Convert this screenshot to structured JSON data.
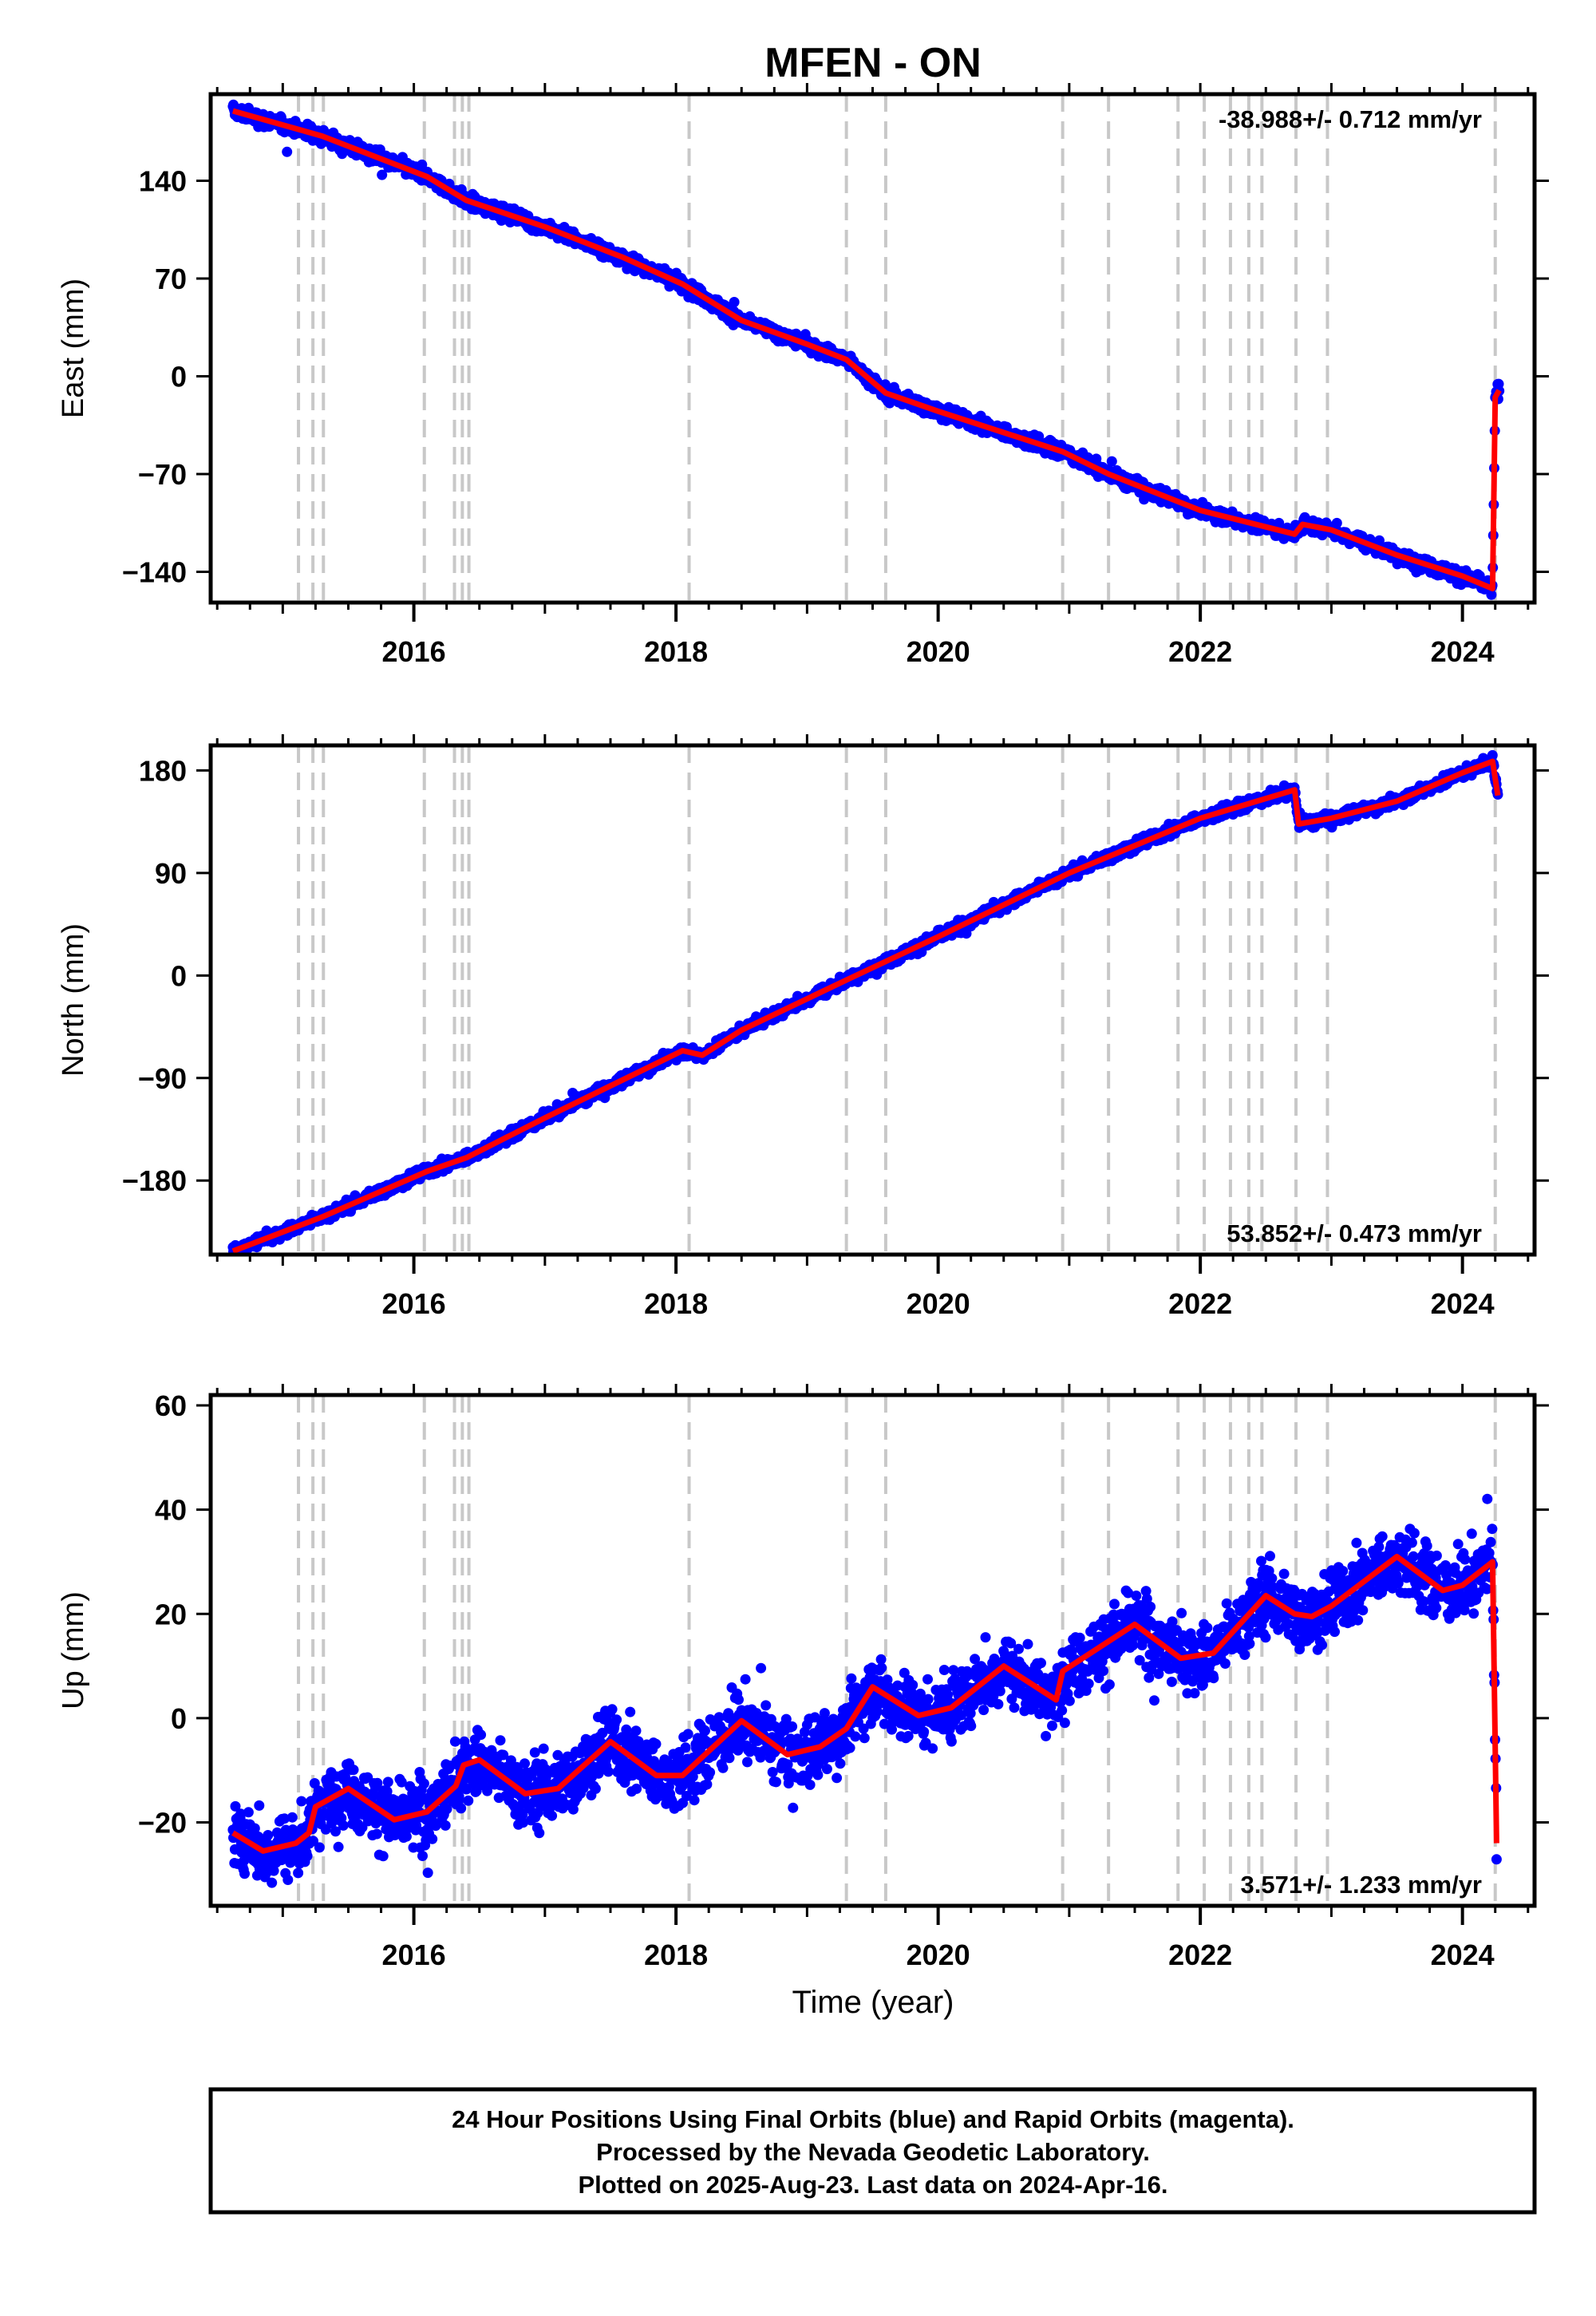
{
  "chart_data": {
    "title": "MFEN - ON",
    "type": "scatter",
    "series_colors": {
      "final_orbits": "#0000ff",
      "rapid_orbits": "#ff00ff",
      "model_fit": "#ff0000",
      "event_lines": "#c8c8c8"
    },
    "xlabel": "Time (year)",
    "xlim": [
      2014.45,
      2024.55
    ],
    "x_ticks": [
      2016,
      2018,
      2020,
      2022,
      2024
    ],
    "event_years": [
      2015.12,
      2015.23,
      2015.31,
      2016.08,
      2016.31,
      2016.37,
      2016.42,
      2018.1,
      2019.3,
      2019.6,
      2020.95,
      2021.3,
      2021.83,
      2022.03,
      2022.23,
      2022.37,
      2022.47,
      2022.73,
      2022.97,
      2024.25
    ],
    "panels": [
      {
        "ylabel": "East (mm)",
        "ylim": [
          -162,
          202
        ],
        "y_ticks": [
          -140,
          -70,
          0,
          70,
          140
        ],
        "rate_label": "-38.988+/- 0.712 mm/yr",
        "rate_position": "top-right",
        "scatter": 3.5,
        "trend_points": [
          [
            2014.62,
            190
          ],
          [
            2015.3,
            172
          ],
          [
            2016.1,
            143
          ],
          [
            2016.4,
            126
          ],
          [
            2017.0,
            107
          ],
          [
            2017.6,
            85
          ],
          [
            2018.05,
            66
          ],
          [
            2018.5,
            40
          ],
          [
            2019.0,
            23
          ],
          [
            2019.3,
            12
          ],
          [
            2019.6,
            -12
          ],
          [
            2020.0,
            -25
          ],
          [
            2020.95,
            -54
          ],
          [
            2021.3,
            -70
          ],
          [
            2022.0,
            -96
          ],
          [
            2022.72,
            -113
          ],
          [
            2022.78,
            -106
          ],
          [
            2023.0,
            -110
          ],
          [
            2023.5,
            -128
          ],
          [
            2024.0,
            -143
          ],
          [
            2024.23,
            -152
          ],
          [
            2024.25,
            -15
          ],
          [
            2024.28,
            -10
          ]
        ]
      },
      {
        "ylabel": "North (mm)",
        "ylim": [
          -245,
          202
        ],
        "y_ticks": [
          -180,
          -90,
          0,
          90,
          180
        ],
        "rate_label": "53.852+/- 0.473 mm/yr",
        "rate_position": "bottom-right",
        "scatter": 3.5,
        "trend_points": [
          [
            2014.62,
            -242
          ],
          [
            2015.3,
            -212
          ],
          [
            2016.1,
            -172
          ],
          [
            2016.4,
            -160
          ],
          [
            2017.0,
            -125
          ],
          [
            2018.05,
            -66
          ],
          [
            2018.2,
            -70
          ],
          [
            2018.5,
            -48
          ],
          [
            2019.3,
            -4
          ],
          [
            2020.0,
            34
          ],
          [
            2021.0,
            90
          ],
          [
            2022.0,
            138
          ],
          [
            2022.72,
            163
          ],
          [
            2022.75,
            133
          ],
          [
            2023.0,
            138
          ],
          [
            2023.5,
            153
          ],
          [
            2024.0,
            178
          ],
          [
            2024.23,
            188
          ],
          [
            2024.27,
            158
          ]
        ]
      },
      {
        "ylabel": "Up (mm)",
        "ylim": [
          -36,
          62
        ],
        "y_ticks": [
          -20,
          0,
          20,
          40,
          60
        ],
        "rate_label": "3.571+/- 1.233 mm/yr",
        "rate_position": "bottom-right",
        "scatter": 4.5,
        "trend_points": [
          [
            2014.62,
            -22
          ],
          [
            2014.85,
            -25.5
          ],
          [
            2015.1,
            -24
          ],
          [
            2015.2,
            -22
          ],
          [
            2015.25,
            -17
          ],
          [
            2015.5,
            -13.5
          ],
          [
            2015.85,
            -19.5
          ],
          [
            2016.1,
            -18
          ],
          [
            2016.32,
            -13
          ],
          [
            2016.38,
            -9
          ],
          [
            2016.5,
            -8
          ],
          [
            2016.85,
            -14.5
          ],
          [
            2017.1,
            -13.5
          ],
          [
            2017.5,
            -4.5
          ],
          [
            2017.85,
            -11
          ],
          [
            2018.05,
            -11
          ],
          [
            2018.5,
            -0.5
          ],
          [
            2018.85,
            -7
          ],
          [
            2019.1,
            -5.5
          ],
          [
            2019.3,
            -2
          ],
          [
            2019.5,
            6
          ],
          [
            2019.85,
            0.5
          ],
          [
            2020.1,
            2
          ],
          [
            2020.5,
            10
          ],
          [
            2020.9,
            3.5
          ],
          [
            2020.95,
            9
          ],
          [
            2021.5,
            18
          ],
          [
            2021.85,
            11.5
          ],
          [
            2022.1,
            12.5
          ],
          [
            2022.5,
            23.5
          ],
          [
            2022.72,
            20
          ],
          [
            2022.85,
            19.5
          ],
          [
            2023.0,
            21.5
          ],
          [
            2023.5,
            31
          ],
          [
            2023.85,
            24.5
          ],
          [
            2024.0,
            25.5
          ],
          [
            2024.23,
            30
          ],
          [
            2024.26,
            -24
          ]
        ]
      }
    ]
  },
  "footer": {
    "line1": "24 Hour Positions Using Final Orbits (blue) and Rapid Orbits (magenta).",
    "line2": "Processed by the Nevada Geodetic Laboratory.",
    "line3": "Plotted on 2025-Aug-23. Last data on 2024-Apr-16."
  }
}
